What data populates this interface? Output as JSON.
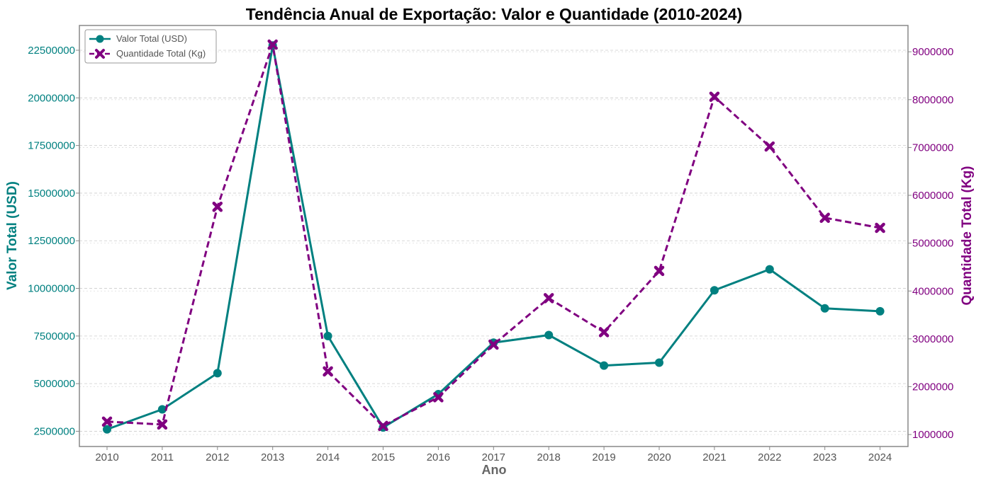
{
  "chart_data": {
    "type": "line",
    "title": "Tendência Anual de Exportação: Valor e Quantidade (2010-2024)",
    "xlabel": "Ano",
    "ylabel": "Valor Total (USD)",
    "ylabel_right": "Quantidade Total (Kg)",
    "x": [
      "2010",
      "2011",
      "2012",
      "2013",
      "2014",
      "2015",
      "2016",
      "2017",
      "2018",
      "2019",
      "2020",
      "2021",
      "2022",
      "2023",
      "2024"
    ],
    "ylim": [
      1700000,
      23800000
    ],
    "ylim_right": [
      750000,
      9550000
    ],
    "yticks": [
      2500000,
      5000000,
      7500000,
      10000000,
      12500000,
      15000000,
      17500000,
      20000000,
      22500000
    ],
    "yticks_right": [
      1000000,
      2000000,
      3000000,
      4000000,
      5000000,
      6000000,
      7000000,
      8000000,
      9000000
    ],
    "ytick_labels": [
      "2500000",
      "5000000",
      "7500000",
      "10000000",
      "12500000",
      "15000000",
      "17500000",
      "20000000",
      "22500000"
    ],
    "ytick_labels_right": [
      "1000000",
      "2000000",
      "3000000",
      "4000000",
      "5000000",
      "6000000",
      "7000000",
      "8000000",
      "9000000"
    ],
    "grid": true,
    "legend_position": "top-left",
    "series": [
      {
        "name": "Valor Total (USD)",
        "axis": "left",
        "color": "#008080",
        "linestyle": "solid",
        "marker": "circle",
        "values": [
          2600000,
          3650000,
          5550000,
          22750000,
          7500000,
          2700000,
          4450000,
          7150000,
          7550000,
          5950000,
          6100000,
          9900000,
          11000000,
          8950000,
          8800000
        ]
      },
      {
        "name": "Quantidade Total (Kg)",
        "axis": "right",
        "color": "#800080",
        "linestyle": "dashed",
        "marker": "x",
        "values": [
          1270000,
          1210000,
          5760000,
          9150000,
          2320000,
          1180000,
          1780000,
          2880000,
          3850000,
          3140000,
          4420000,
          8060000,
          7020000,
          5530000,
          5320000
        ]
      }
    ]
  }
}
